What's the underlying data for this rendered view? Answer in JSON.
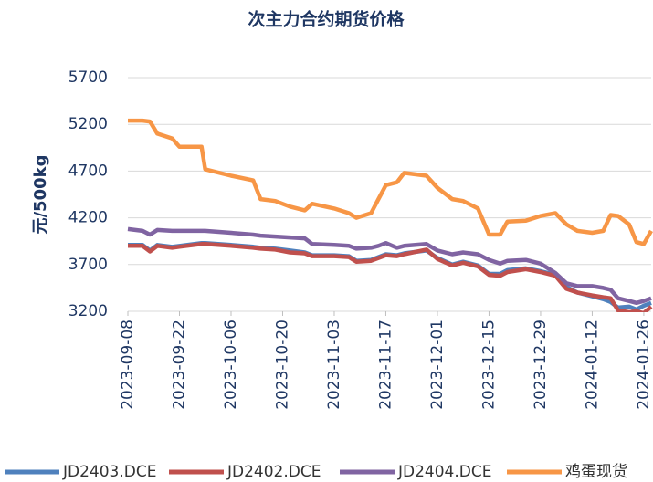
{
  "chart_data": {
    "type": "line",
    "title": "次主力合约期货价格",
    "ylabel": "元/500kg",
    "x": [
      "2023-09-08",
      "2023-09-12",
      "2023-09-14",
      "2023-09-16",
      "2023-09-20",
      "2023-09-22",
      "2023-09-28",
      "2023-09-29",
      "2023-10-06",
      "2023-10-12",
      "2023-10-14",
      "2023-10-18",
      "2023-10-22",
      "2023-10-26",
      "2023-10-28",
      "2023-11-03",
      "2023-11-07",
      "2023-11-09",
      "2023-11-13",
      "2023-11-15",
      "2023-11-17",
      "2023-11-20",
      "2023-11-22",
      "2023-11-28",
      "2023-12-01",
      "2023-12-05",
      "2023-12-08",
      "2023-12-12",
      "2023-12-15",
      "2023-12-18",
      "2023-12-20",
      "2023-12-25",
      "2023-12-29",
      "2024-01-02",
      "2024-01-05",
      "2024-01-08",
      "2024-01-12",
      "2024-01-15",
      "2024-01-17",
      "2024-01-19",
      "2024-01-22",
      "2024-01-24",
      "2024-01-26",
      "2024-01-28"
    ],
    "series": [
      {
        "name": "JD2403.DCE",
        "color": "#4f81bd",
        "values": [
          3910,
          3910,
          3850,
          3910,
          3890,
          3900,
          3930,
          3930,
          3910,
          3890,
          3880,
          3870,
          3850,
          3830,
          3800,
          3800,
          3790,
          3740,
          3750,
          3780,
          3810,
          3800,
          3820,
          3850,
          3770,
          3700,
          3730,
          3690,
          3600,
          3600,
          3640,
          3660,
          3630,
          3590,
          3460,
          3400,
          3360,
          3330,
          3300,
          3240,
          3250,
          3220,
          3260,
          3290
        ]
      },
      {
        "name": "JD2402.DCE",
        "color": "#c0504d",
        "values": [
          3900,
          3900,
          3840,
          3900,
          3880,
          3890,
          3920,
          3920,
          3900,
          3880,
          3870,
          3860,
          3830,
          3820,
          3790,
          3790,
          3780,
          3730,
          3740,
          3770,
          3800,
          3790,
          3810,
          3860,
          3760,
          3690,
          3720,
          3680,
          3590,
          3580,
          3620,
          3650,
          3620,
          3580,
          3440,
          3400,
          3370,
          3350,
          3340,
          3210,
          3190,
          3200,
          3180,
          3250
        ]
      },
      {
        "name": "JD2404.DCE",
        "color": "#8064a2",
        "values": [
          4080,
          4060,
          4020,
          4070,
          4060,
          4060,
          4060,
          4060,
          4040,
          4020,
          4010,
          4000,
          3990,
          3980,
          3920,
          3910,
          3900,
          3870,
          3880,
          3900,
          3930,
          3880,
          3900,
          3920,
          3850,
          3810,
          3830,
          3810,
          3750,
          3710,
          3740,
          3750,
          3710,
          3610,
          3500,
          3470,
          3470,
          3450,
          3430,
          3340,
          3310,
          3290,
          3310,
          3340
        ]
      },
      {
        "name": "鸡蛋现货",
        "color": "#f79646",
        "values": [
          5240,
          5240,
          5230,
          5100,
          5050,
          4960,
          4960,
          4720,
          4650,
          4600,
          4400,
          4380,
          4320,
          4280,
          4350,
          4300,
          4250,
          4200,
          4250,
          4400,
          4550,
          4580,
          4680,
          4650,
          4520,
          4400,
          4380,
          4300,
          4020,
          4020,
          4160,
          4170,
          4220,
          4250,
          4130,
          4060,
          4040,
          4060,
          4230,
          4220,
          4130,
          3940,
          3920,
          4060
        ]
      }
    ],
    "xlim": [
      "2023-09-08",
      "2024-01-28"
    ],
    "xticks": [
      "2023-09-08",
      "2023-09-22",
      "2023-10-06",
      "2023-10-20",
      "2023-11-03",
      "2023-11-17",
      "2023-12-01",
      "2023-12-15",
      "2023-12-29",
      "2024-01-12",
      "2024-01-26"
    ],
    "ylim": [
      3200,
      5700
    ],
    "yticks": [
      3200,
      3700,
      4200,
      4700,
      5200,
      5700
    ],
    "grid": true,
    "legend": "bottom"
  }
}
